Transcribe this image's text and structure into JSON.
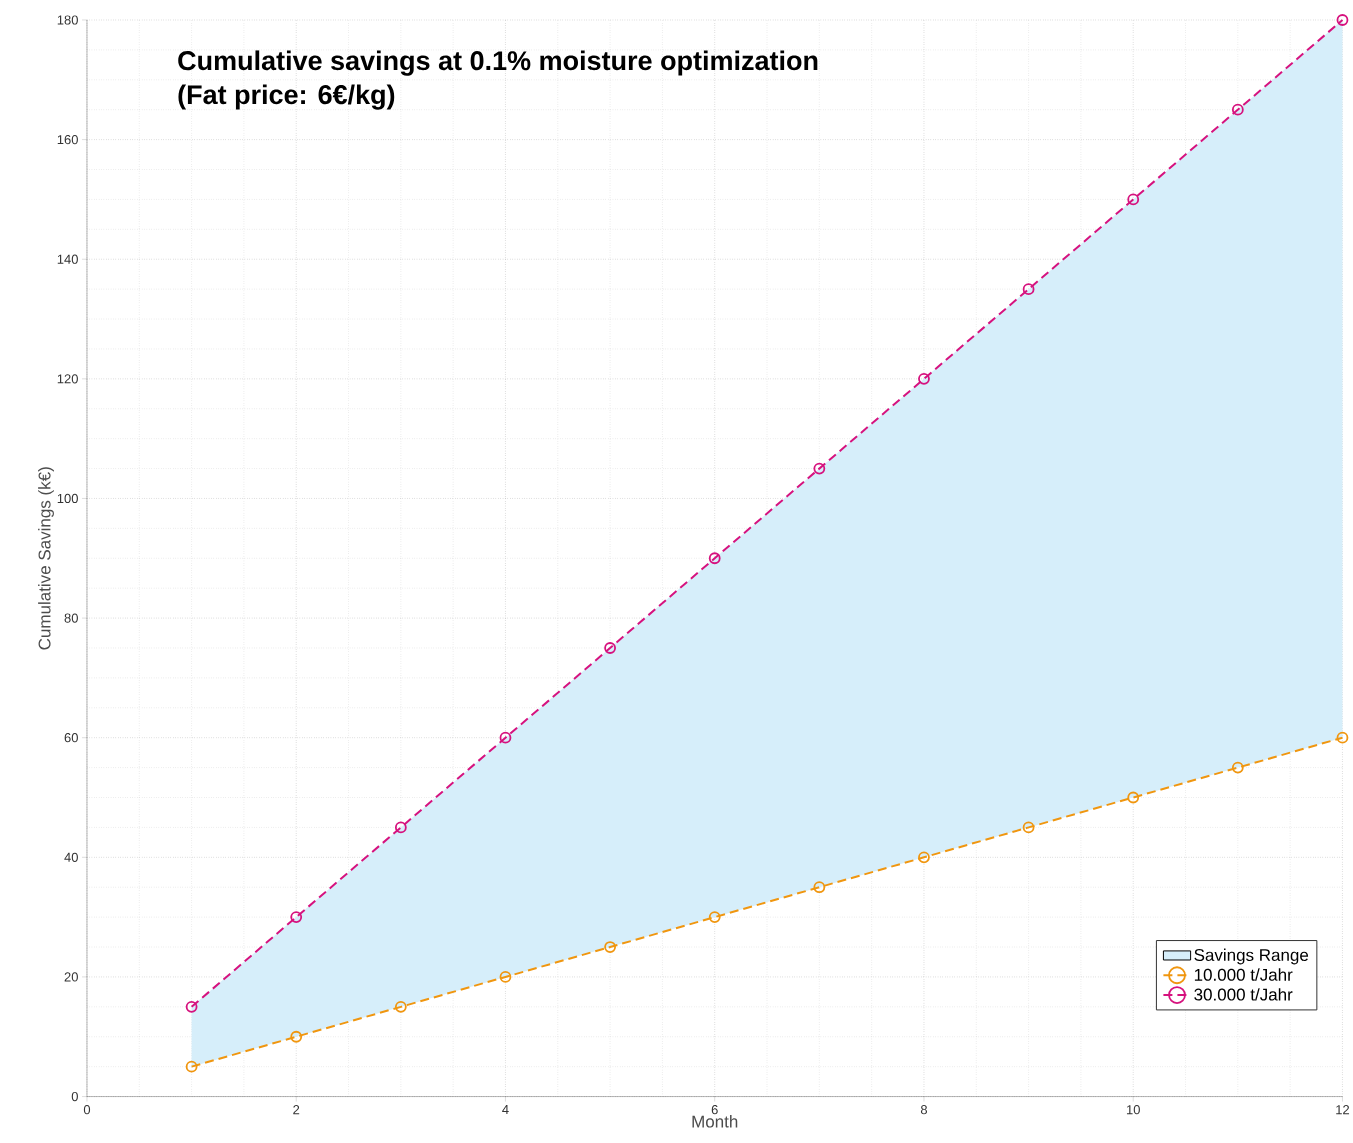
{
  "chart_data": {
    "type": "line",
    "title": "Cumulative savings at 0.1% moisture optimization",
    "subtitle": "(Fat price: 6€/kg)",
    "xlabel": "Month",
    "ylabel": "Cumulative Savings (k€)",
    "x": [
      1,
      2,
      3,
      4,
      5,
      6,
      7,
      8,
      9,
      10,
      11,
      12
    ],
    "series": [
      {
        "name": "10.000 t/Jahr",
        "color": "#f0960f",
        "values": [
          5,
          10,
          15,
          20,
          25,
          30,
          35,
          40,
          45,
          50,
          55,
          60
        ]
      },
      {
        "name": "30.000 t/Jahr",
        "color": "#d6127e",
        "values": [
          15,
          30,
          45,
          60,
          75,
          90,
          105,
          120,
          135,
          150,
          165,
          180
        ]
      },
      {
        "name": "Savings Range",
        "type": "area",
        "color": "#d6eefa",
        "marker": "none",
        "values": [
          null,
          null,
          null,
          null,
          null,
          null,
          null,
          null,
          null,
          null,
          null,
          null
        ],
        "lower": [
          5,
          10,
          15,
          20,
          25,
          30,
          35,
          40,
          45,
          50,
          55,
          60
        ],
        "upper": [
          15,
          30,
          45,
          60,
          75,
          90,
          105,
          120,
          135,
          150,
          165,
          180
        ]
      }
    ],
    "xlim": [
      0,
      12
    ],
    "xticks": [
      0,
      2,
      4,
      6,
      8,
      10,
      12
    ],
    "ylim": [
      0,
      180
    ],
    "yticks": [
      0,
      20,
      40,
      60,
      80,
      100,
      120,
      140,
      160,
      180
    ],
    "grid": true,
    "legend": "bottom right",
    "marker": "circle",
    "line_style": "dashed"
  }
}
